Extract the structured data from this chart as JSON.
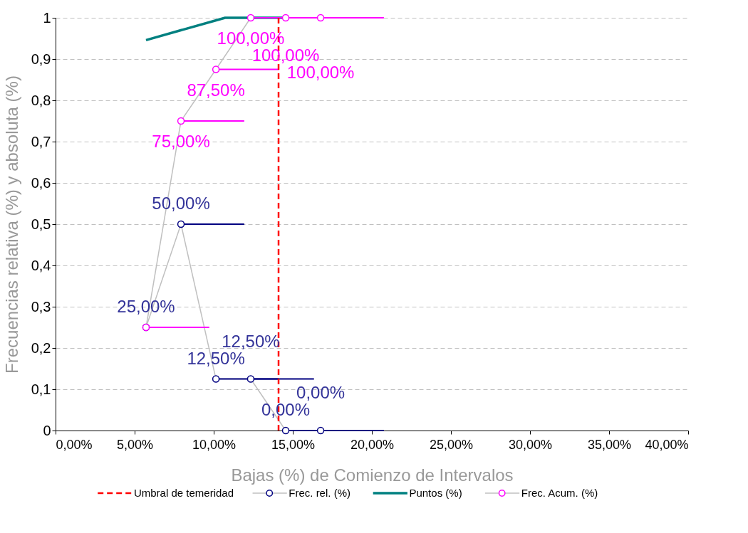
{
  "chart_data": {
    "type": "line",
    "xlabel": "Bajas (%) de Comienzo de Intervalos",
    "ylabel": "Frecuencias relativa (%) y absoluta (%)",
    "xlim": [
      0,
      40
    ],
    "xticks": [
      {
        "value": 0,
        "label": "0,00%"
      },
      {
        "value": 5,
        "label": "5,00%"
      },
      {
        "value": 10,
        "label": "10,00%"
      },
      {
        "value": 15,
        "label": "15,00%"
      },
      {
        "value": 20,
        "label": "20,00%"
      },
      {
        "value": 25,
        "label": "25,00%"
      },
      {
        "value": 30,
        "label": "30,00%"
      },
      {
        "value": 35,
        "label": "35,00%"
      },
      {
        "value": 40,
        "label": "40,00%"
      }
    ],
    "ylim": [
      0,
      1
    ],
    "yticks": [
      0,
      {
        "value": 0.1,
        "label": "0,1"
      },
      {
        "value": 0.2,
        "label": "0,2"
      },
      {
        "value": 0.3,
        "label": "0,3"
      },
      {
        "value": 0.4,
        "label": "0,4"
      },
      {
        "value": 0.5,
        "label": "0,5"
      },
      {
        "value": 0.6,
        "label": "0,6"
      },
      {
        "value": 0.7,
        "label": "0,7"
      },
      {
        "value": 0.8,
        "label": "0,8"
      },
      {
        "value": 0.9,
        "label": "0,9"
      },
      1
    ],
    "grid": "y",
    "legend": "bottom",
    "ref_lines": [
      {
        "axis": "x",
        "value": 14.1,
        "label": "Umbral de temeridad",
        "color": "#ff0000",
        "line_style": "dashed"
      }
    ],
    "series": [
      {
        "name": "Frec. rel. (%)",
        "type": "line",
        "marker": "circle",
        "color": "#000080",
        "x": [
          5.72,
          7.93,
          10.14,
          12.34,
          14.55,
          16.76
        ],
        "values": [
          0.25,
          0.5,
          0.125,
          0.125,
          0,
          0
        ],
        "xerrors": [
          null,
          [
            7.93,
            11.93
          ],
          [
            10.14,
            14.14
          ],
          [
            12.34,
            16.34
          ],
          [
            14.55,
            18.55
          ],
          [
            16.76,
            20.76
          ]
        ],
        "value_labels": [
          "25,00%",
          "50,00%",
          "12,50%",
          "12,50%",
          "0,00%",
          "0,00%"
        ]
      },
      {
        "name": "Puntos (%)",
        "type": "line",
        "marker": "none",
        "color": "#008080",
        "x": [
          5.72,
          10.72,
          14.4
        ],
        "values": [
          0.946,
          1,
          1
        ]
      },
      {
        "name": "Frec. Acum. (%)",
        "type": "line",
        "marker": "circle",
        "color": "#ff00ff",
        "x": [
          5.72,
          7.93,
          10.14,
          12.34,
          14.55,
          16.76
        ],
        "values": [
          0.25,
          0.75,
          0.875,
          1,
          1,
          1
        ],
        "xerrors": [
          [
            5.72,
            9.72
          ],
          [
            7.93,
            11.93
          ],
          [
            10.14,
            14.14
          ],
          [
            12.34,
            16.34
          ],
          [
            14.55,
            18.55
          ],
          [
            16.76,
            20.76
          ]
        ],
        "value_labels": [
          null,
          "75,00%",
          "87,50%",
          "100,00%",
          "100,00%",
          "100,00%"
        ]
      }
    ]
  }
}
